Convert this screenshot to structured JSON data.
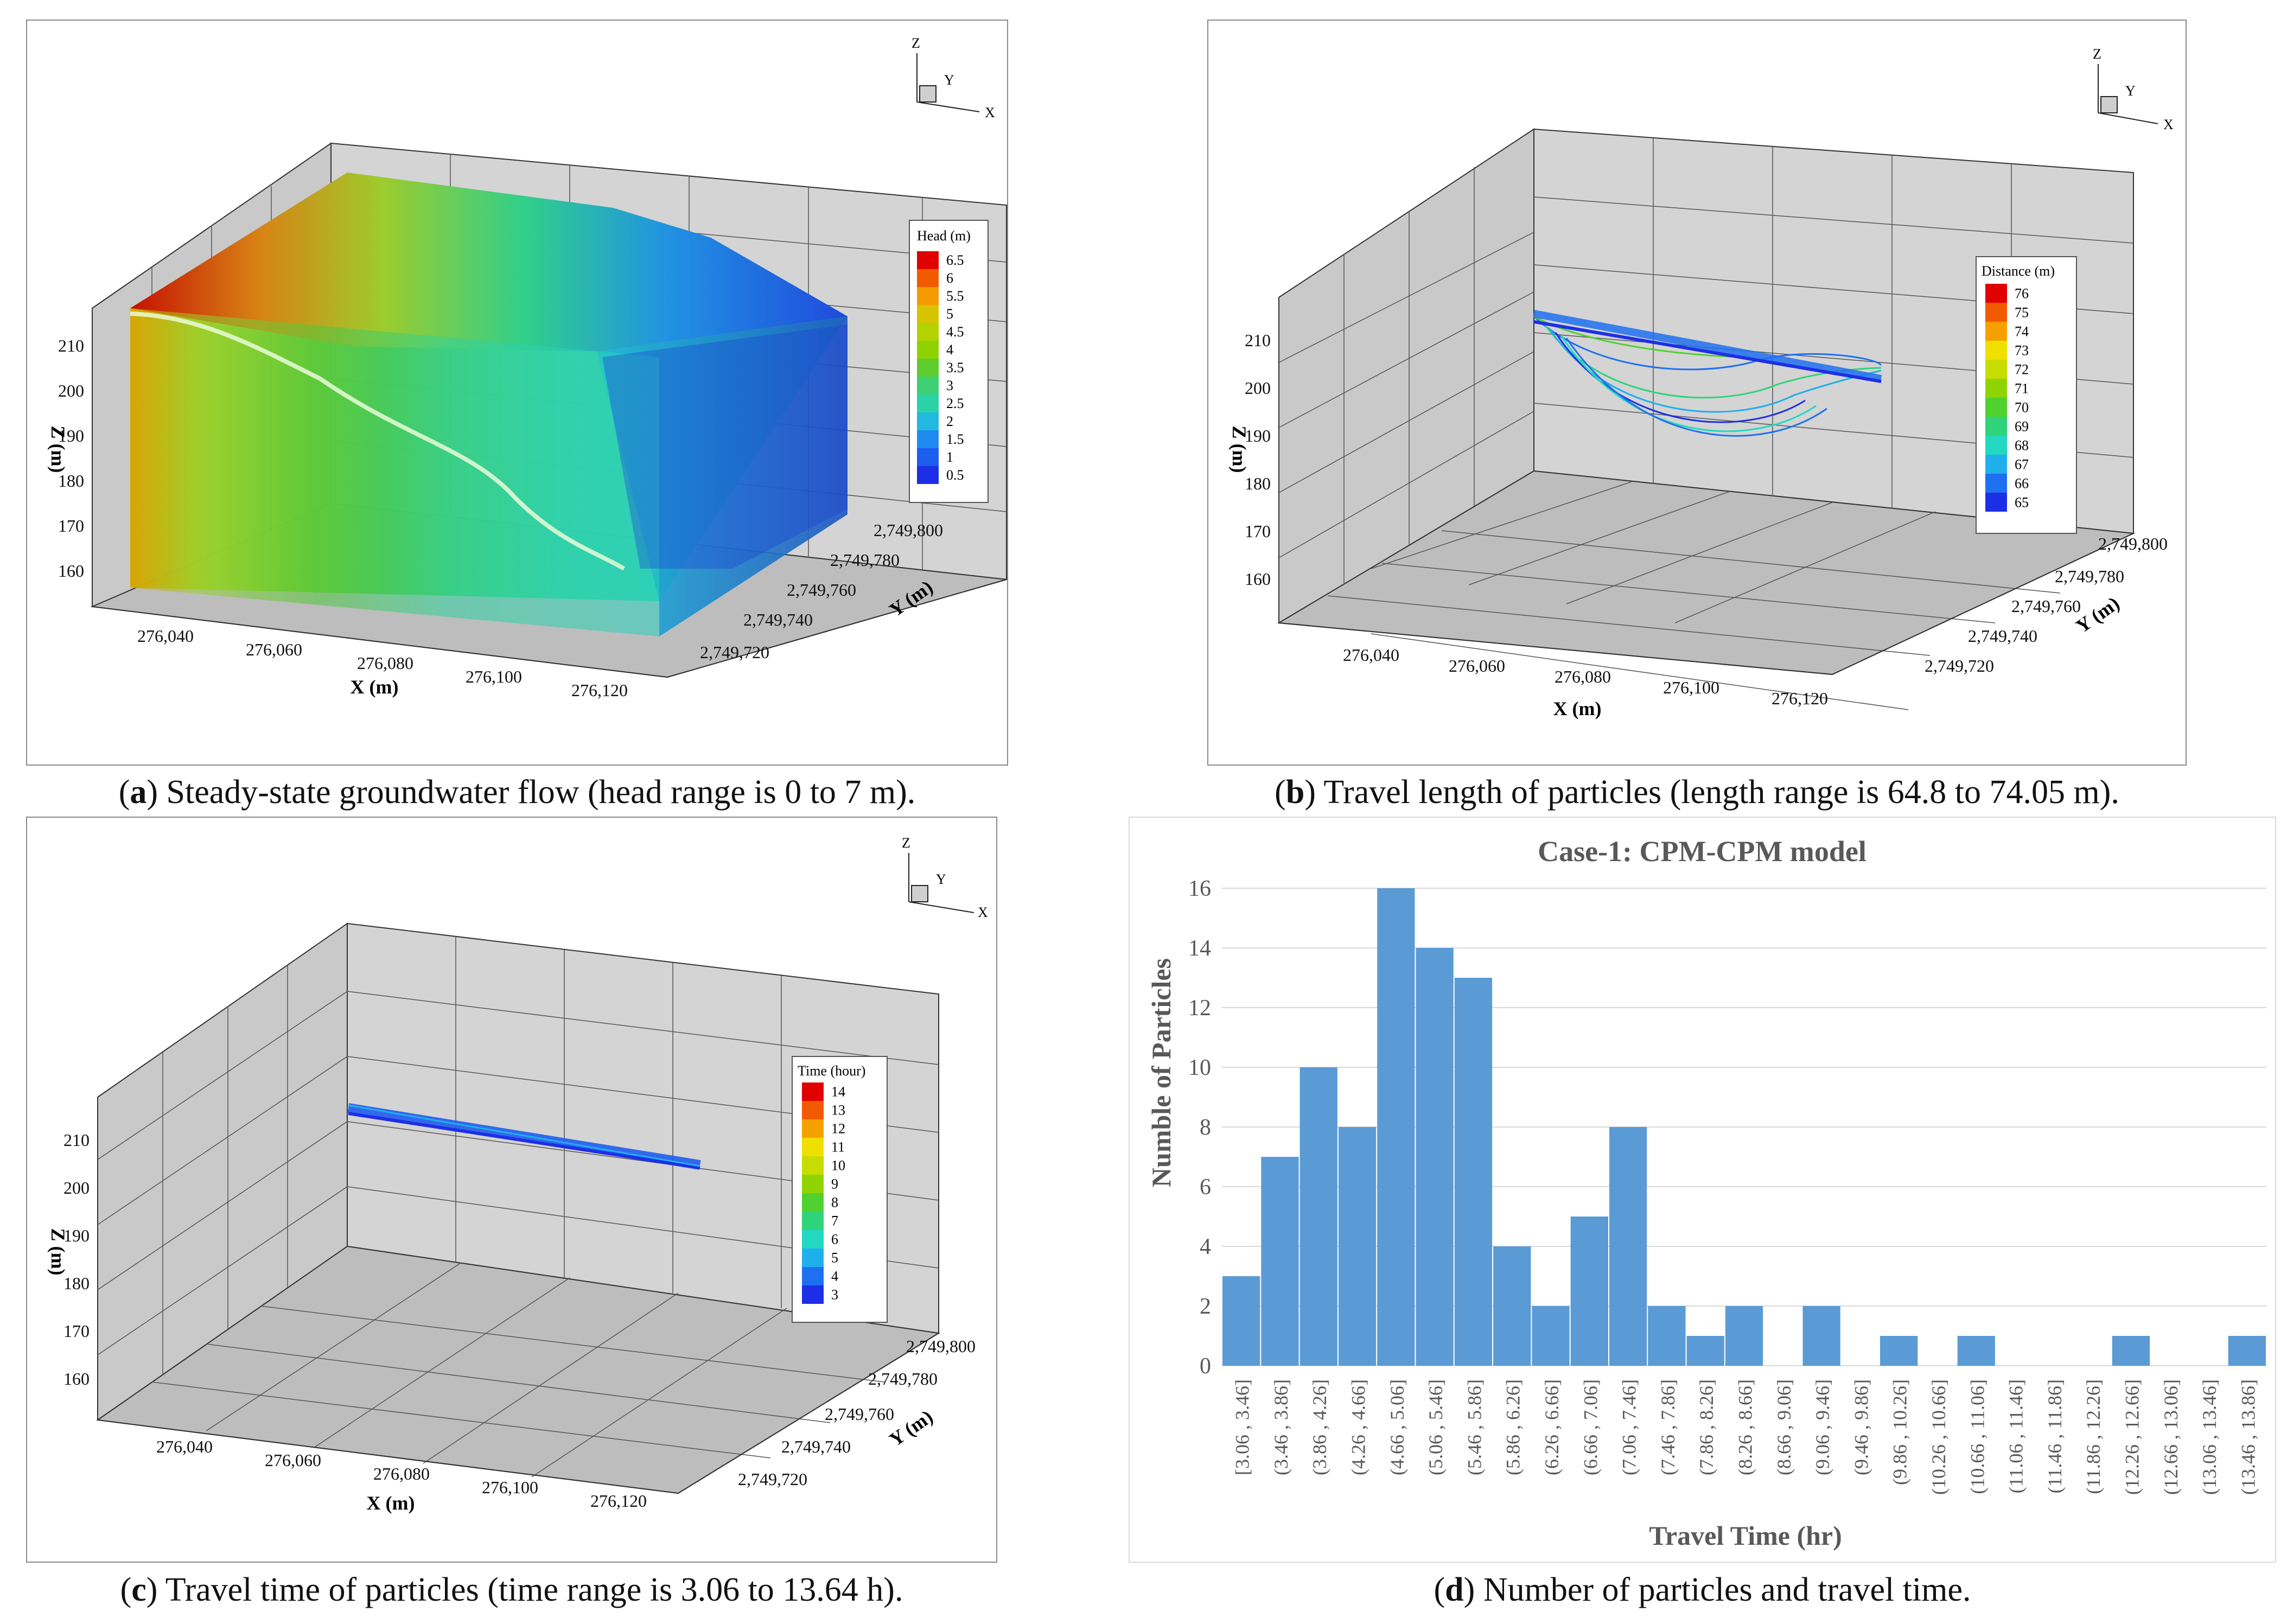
{
  "figure": {
    "panels": [
      {
        "id": "a",
        "caption_letter": "a",
        "caption_text": " Steady-state groundwater flow (head range is 0 to 7 m).",
        "legend_title": "Head (m)",
        "legend_values": [
          "6.5",
          "6",
          "5.5",
          "5",
          "4.5",
          "4",
          "3.5",
          "3",
          "2.5",
          "2",
          "1.5",
          "1",
          "0.5"
        ],
        "legend_colors": [
          "#e00000",
          "#f25a00",
          "#f59a00",
          "#d7c400",
          "#b4d200",
          "#8ed300",
          "#5fcc2d",
          "#3fcf74",
          "#2bd2a8",
          "#22b8e0",
          "#1f8bf0",
          "#1d5df0",
          "#1d2fe6"
        ],
        "x_axis_label": "X (m)",
        "x_ticks": [
          "276,040",
          "276,060",
          "276,080",
          "276,100",
          "276,120"
        ],
        "y_axis_label": "Y (m)",
        "y_ticks": [
          "2,749,720",
          "2,749,740",
          "2,749,760",
          "2,749,780",
          "2,749,800"
        ],
        "z_axis_label": "Z (m)",
        "z_ticks": [
          "210",
          "200",
          "190",
          "180",
          "170",
          "160"
        ],
        "orientation_labels": [
          "Z",
          "Y",
          "X"
        ]
      },
      {
        "id": "b",
        "caption_letter": "b",
        "caption_text": " Travel length of particles (length range is 64.8 to 74.05 m).",
        "legend_title": "Distance (m)",
        "legend_values": [
          "76",
          "75",
          "74",
          "73",
          "72",
          "71",
          "70",
          "69",
          "68",
          "67",
          "66",
          "65"
        ],
        "legend_colors": [
          "#e00000",
          "#f25a00",
          "#f5a000",
          "#f0e000",
          "#c7dc00",
          "#8fd400",
          "#4fd12f",
          "#2fd37a",
          "#22d8c0",
          "#1fb0ec",
          "#1f70f0",
          "#1d2fe6"
        ],
        "x_axis_label": "X (m)",
        "x_ticks": [
          "276,040",
          "276,060",
          "276,080",
          "276,100",
          "276,120"
        ],
        "y_axis_label": "Y (m)",
        "y_ticks": [
          "2,749,720",
          "2,749,740",
          "2,749,760",
          "2,749,780",
          "2,749,800"
        ],
        "z_axis_label": "Z (m)",
        "z_ticks": [
          "210",
          "200",
          "190",
          "180",
          "170",
          "160"
        ],
        "orientation_labels": [
          "Z",
          "Y",
          "X"
        ]
      },
      {
        "id": "c",
        "caption_letter": "c",
        "caption_text": " Travel time of particles (time range is 3.06 to 13.64 h).",
        "legend_title": "Time (hour)",
        "legend_values": [
          "14",
          "13",
          "12",
          "11",
          "10",
          "9",
          "8",
          "7",
          "6",
          "5",
          "4",
          "3"
        ],
        "legend_colors": [
          "#e00000",
          "#f25a00",
          "#f5a000",
          "#f0e000",
          "#c7dc00",
          "#8fd400",
          "#4fd12f",
          "#2fd37a",
          "#22d8c0",
          "#1fb0ec",
          "#1f70f0",
          "#1d2fe6"
        ],
        "x_axis_label": "X (m)",
        "x_ticks": [
          "276,040",
          "276,060",
          "276,080",
          "276,100",
          "276,120"
        ],
        "y_axis_label": "Y (m)",
        "y_ticks": [
          "2,749,720",
          "2,749,740",
          "2,749,760",
          "2,749,780",
          "2,749,800"
        ],
        "z_axis_label": "Z (m)",
        "z_ticks": [
          "210",
          "200",
          "190",
          "180",
          "170",
          "160"
        ],
        "orientation_labels": [
          "Z",
          "Y",
          "X"
        ]
      },
      {
        "id": "d",
        "caption_letter": "d",
        "caption_text": " Number of particles and travel time."
      }
    ]
  },
  "chart_data": {
    "type": "bar",
    "title": "Case-1: CPM-CPM model",
    "xlabel": "Travel Time (hr)",
    "ylabel": "Numble of Particles",
    "ylim": [
      0,
      16
    ],
    "yticks": [
      "0",
      "2",
      "4",
      "6",
      "8",
      "10",
      "12",
      "14",
      "16"
    ],
    "grid": true,
    "bar_color": "#5b9bd5",
    "categories": [
      "[3.06 , 3.46]",
      "(3.46 , 3.86]",
      "(3.86 , 4.26]",
      "(4.26 , 4.66]",
      "(4.66 , 5.06]",
      "(5.06 , 5.46]",
      "(5.46 , 5.86]",
      "(5.86 , 6.26]",
      "(6.26 , 6.66]",
      "(6.66 , 7.06]",
      "(7.06 , 7.46]",
      "(7.46 , 7.86]",
      "(7.86 , 8.26]",
      "(8.26 , 8.66]",
      "(8.66 , 9.06]",
      "(9.06 , 9.46]",
      "(9.46 , 9.86]",
      "(9.86 , 10.26]",
      "(10.26 , 10.66]",
      "(10.66 , 11.06]",
      "(11.06 , 11.46]",
      "(11.46 , 11.86]",
      "(11.86 , 12.26]",
      "(12.26 , 12.66]",
      "(12.66 , 13.06]",
      "(13.06 , 13.46]",
      "(13.46 , 13.86]"
    ],
    "values": [
      3,
      7,
      10,
      8,
      16,
      14,
      13,
      4,
      2,
      5,
      8,
      2,
      1,
      2,
      0,
      2,
      0,
      1,
      0,
      1,
      0,
      0,
      0,
      1,
      0,
      0,
      1
    ]
  }
}
